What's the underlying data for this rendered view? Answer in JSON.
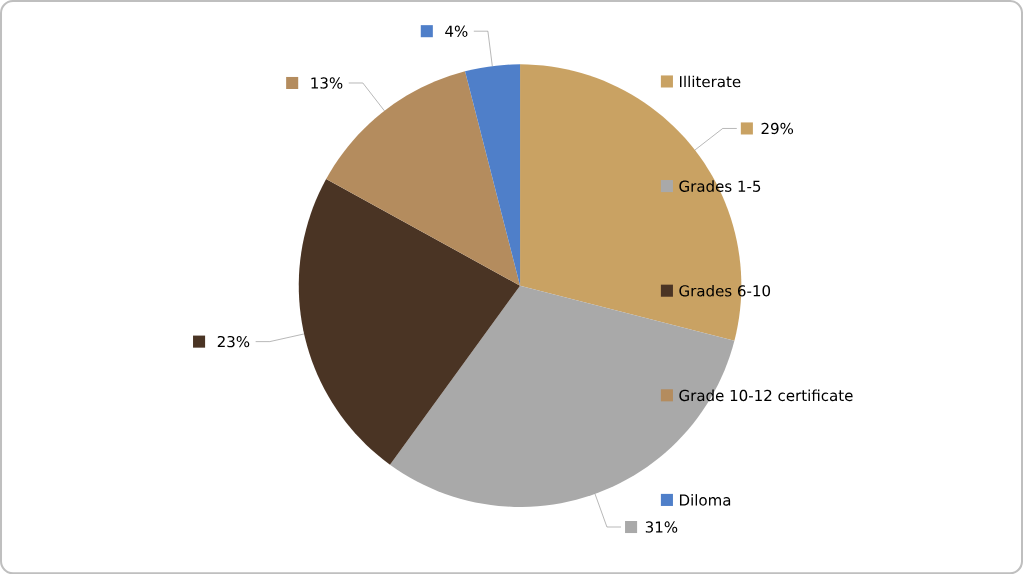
{
  "chart_data": {
    "type": "pie",
    "categories": [
      "Illiterate",
      "Grades 1-5",
      "Grades 6-10",
      "Grade 10-12 certificate",
      "Diloma"
    ],
    "values": [
      29,
      31,
      23,
      13,
      4
    ],
    "colors": [
      "#c9a263",
      "#a9a9a9",
      "#4a3424",
      "#b48c5e",
      "#4f7fc9"
    ],
    "value_labels": [
      "29%",
      "31%",
      "23%",
      "13%",
      "4%"
    ],
    "legend": "right"
  }
}
